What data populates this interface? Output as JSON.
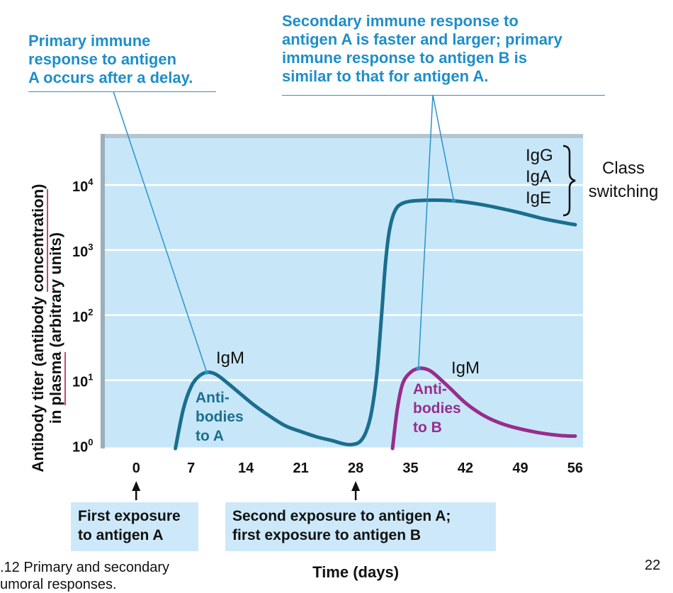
{
  "callouts": {
    "primary": {
      "line1_bold": "Primary immune",
      "line2_bold": "response",
      "line2_rest": " to antigen",
      "line3": "A occurs after a delay."
    },
    "secondary": {
      "line1_bold": "Secondary immune response",
      "line1_rest": " to",
      "line2_rest": "antigen A is faster and larger; ",
      "line2_bold": "primary",
      "line3_bold": "immune response",
      "line3_rest": " to antigen B is",
      "line4": "similar to that for antigen A."
    }
  },
  "y_axis_title": {
    "line1_pre": "Antibody titer (antibody ",
    "line1_ul": "concentration",
    "line1_post": ")",
    "line2_pre": "in ",
    "line2_ul": "plasma",
    "line2_post": " (arbitrary units)"
  },
  "chart_data": {
    "type": "line",
    "x_label": "Time (days)",
    "x_ticks": [
      0,
      7,
      14,
      21,
      28,
      35,
      42,
      49,
      56
    ],
    "x_range": [
      -4,
      57
    ],
    "y_scale": "log",
    "y_ticks": [
      {
        "exp": 0,
        "base": "10",
        "sup": "0"
      },
      {
        "exp": 1,
        "base": "10",
        "sup": "1"
      },
      {
        "exp": 2,
        "base": "10",
        "sup": "2"
      },
      {
        "exp": 3,
        "base": "10",
        "sup": "3"
      },
      {
        "exp": 4,
        "base": "10",
        "sup": "4"
      }
    ],
    "y_range_log10": [
      -0.05,
      4.72
    ],
    "series": [
      {
        "name": "Antibodies to A",
        "color": "#1b6e8e",
        "points": [
          [
            5,
            -0.05
          ],
          [
            6,
            0.55
          ],
          [
            7,
            0.9
          ],
          [
            8,
            1.06
          ],
          [
            9,
            1.12
          ],
          [
            10,
            1.1
          ],
          [
            11,
            1.02
          ],
          [
            13,
            0.82
          ],
          [
            15,
            0.62
          ],
          [
            17,
            0.45
          ],
          [
            19,
            0.3
          ],
          [
            21,
            0.21
          ],
          [
            23,
            0.13
          ],
          [
            25,
            0.07
          ],
          [
            26.5,
            0.02
          ],
          [
            27.5,
            0.01
          ],
          [
            28.5,
            0.05
          ],
          [
            29.3,
            0.2
          ],
          [
            30,
            0.5
          ],
          [
            30.7,
            1.1
          ],
          [
            31.3,
            2.0
          ],
          [
            31.8,
            2.8
          ],
          [
            32.3,
            3.3
          ],
          [
            33,
            3.6
          ],
          [
            34,
            3.72
          ],
          [
            36,
            3.76
          ],
          [
            40,
            3.76
          ],
          [
            44,
            3.7
          ],
          [
            48,
            3.6
          ],
          [
            52,
            3.48
          ],
          [
            55,
            3.41
          ],
          [
            56,
            3.39
          ]
        ]
      },
      {
        "name": "Antibodies to B",
        "color": "#982d8d",
        "points": [
          [
            32.7,
            -0.05
          ],
          [
            33.3,
            0.55
          ],
          [
            34,
            0.95
          ],
          [
            35,
            1.12
          ],
          [
            36,
            1.18
          ],
          [
            37,
            1.17
          ],
          [
            38,
            1.1
          ],
          [
            40,
            0.88
          ],
          [
            42,
            0.65
          ],
          [
            44,
            0.48
          ],
          [
            46,
            0.36
          ],
          [
            48,
            0.28
          ],
          [
            51,
            0.2
          ],
          [
            54,
            0.15
          ],
          [
            56,
            0.14
          ]
        ]
      }
    ],
    "annotations": {
      "igm_a": "IgM",
      "antibodies_a": [
        "Anti-",
        "bodies",
        "to A"
      ],
      "igm_b": "IgM",
      "antibodies_b": [
        "Anti-",
        "bodies",
        "to B"
      ],
      "class_isotypes": [
        "IgG",
        "IgA",
        "IgE"
      ],
      "class_label": [
        "Class",
        "switching"
      ]
    }
  },
  "exposures": {
    "first": [
      "First exposure",
      "to antigen A"
    ],
    "second": [
      "Second exposure to antigen A;",
      "first exposure to antigen B"
    ]
  },
  "figure_caption": [
    ".12 Primary and secondary",
    "umoral responses."
  ],
  "page_number": "22"
}
